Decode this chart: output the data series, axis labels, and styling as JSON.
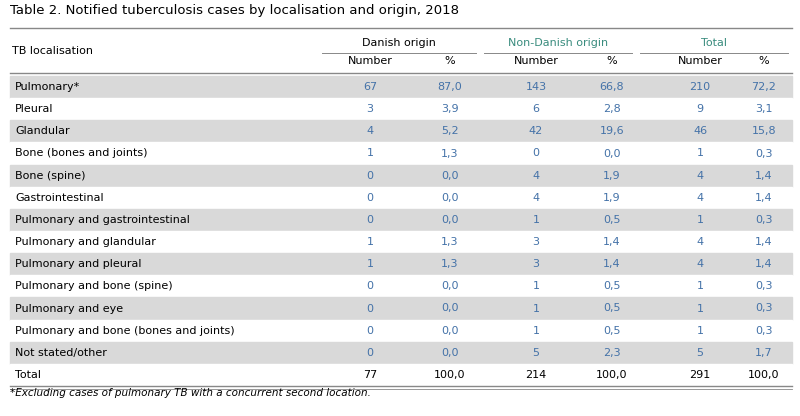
{
  "title": "Table 2. Notified tuberculosis cases by localisation and origin, 2018",
  "footnote": "*Excluding cases of pulmonary TB with a concurrent second location.",
  "row_header": "TB localisation",
  "col_group_labels": [
    "Danish origin",
    "Non-Danish origin",
    "Total"
  ],
  "sub_col_labels": [
    "Number",
    "%",
    "Number",
    "%",
    "Number",
    "%"
  ],
  "rows": [
    {
      "label": "Pulmonary*",
      "vals": [
        "67",
        "87,0",
        "143",
        "66,8",
        "210",
        "72,2"
      ],
      "shaded": true
    },
    {
      "label": "Pleural",
      "vals": [
        "3",
        "3,9",
        "6",
        "2,8",
        "9",
        "3,1"
      ],
      "shaded": false
    },
    {
      "label": "Glandular",
      "vals": [
        "4",
        "5,2",
        "42",
        "19,6",
        "46",
        "15,8"
      ],
      "shaded": true
    },
    {
      "label": "Bone (bones and joints)",
      "vals": [
        "1",
        "1,3",
        "0",
        "0,0",
        "1",
        "0,3"
      ],
      "shaded": false
    },
    {
      "label": "Bone (spine)",
      "vals": [
        "0",
        "0,0",
        "4",
        "1,9",
        "4",
        "1,4"
      ],
      "shaded": true
    },
    {
      "label": "Gastrointestinal",
      "vals": [
        "0",
        "0,0",
        "4",
        "1,9",
        "4",
        "1,4"
      ],
      "shaded": false
    },
    {
      "label": "Pulmonary and gastrointestinal",
      "vals": [
        "0",
        "0,0",
        "1",
        "0,5",
        "1",
        "0,3"
      ],
      "shaded": true
    },
    {
      "label": "Pulmonary and glandular",
      "vals": [
        "1",
        "1,3",
        "3",
        "1,4",
        "4",
        "1,4"
      ],
      "shaded": false
    },
    {
      "label": "Pulmonary and pleural",
      "vals": [
        "1",
        "1,3",
        "3",
        "1,4",
        "4",
        "1,4"
      ],
      "shaded": true
    },
    {
      "label": "Pulmonary and bone (spine)",
      "vals": [
        "0",
        "0,0",
        "1",
        "0,5",
        "1",
        "0,3"
      ],
      "shaded": false
    },
    {
      "label": "Pulmonary and eye",
      "vals": [
        "0",
        "0,0",
        "1",
        "0,5",
        "1",
        "0,3"
      ],
      "shaded": true
    },
    {
      "label": "Pulmonary and bone (bones and joints)",
      "vals": [
        "0",
        "0,0",
        "1",
        "0,5",
        "1",
        "0,3"
      ],
      "shaded": false
    },
    {
      "label": "Not stated/other",
      "vals": [
        "0",
        "0,0",
        "5",
        "2,3",
        "5",
        "1,7"
      ],
      "shaded": true
    },
    {
      "label": "Total",
      "vals": [
        "77",
        "100,0",
        "214",
        "100,0",
        "291",
        "100,0"
      ],
      "shaded": false
    }
  ],
  "shaded_color": "#d9d9d9",
  "white_color": "#ffffff",
  "title_color": "#000000",
  "text_color_blue": "#4472a8",
  "text_color_teal": "#3a8c7e",
  "text_color_black": "#000000",
  "line_color": "#888888",
  "title_fontsize": 9.5,
  "body_fontsize": 8.0,
  "header_fontsize": 8.0,
  "footnote_fontsize": 7.5
}
